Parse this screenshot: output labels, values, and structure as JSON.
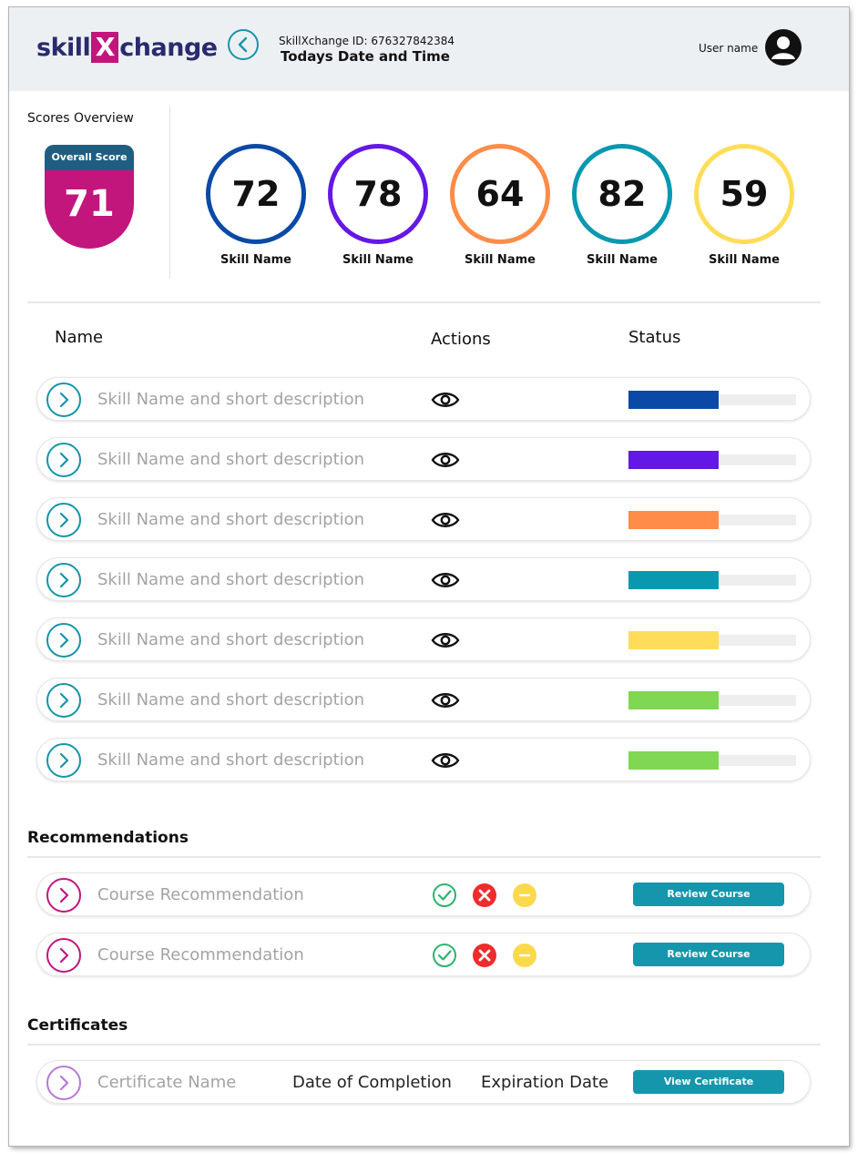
{
  "header": {
    "logo_left": "skill",
    "logo_mark": "X",
    "logo_right": "change",
    "id_line": "SkillXchange ID: 676327842384",
    "datetime_label": "Todays Date and Time",
    "user_name": "User name"
  },
  "scores": {
    "title": "Scores Overview",
    "overall_label": "Overall Score",
    "overall_value": "71",
    "overall_colors": {
      "top": "#1f5e80",
      "bottom": "#c2167c"
    },
    "items": [
      {
        "value": "72",
        "label": "Skill Name",
        "color": "#0b49a6"
      },
      {
        "value": "78",
        "label": "Skill Name",
        "color": "#6418e6"
      },
      {
        "value": "64",
        "label": "Skill Name",
        "color": "#ff8c48"
      },
      {
        "value": "82",
        "label": "Skill Name",
        "color": "#0898b0"
      },
      {
        "value": "59",
        "label": "Skill Name",
        "color": "#ffdd5a"
      }
    ]
  },
  "skills_table": {
    "headers": {
      "name": "Name",
      "actions": "Actions",
      "status": "Status"
    },
    "action_icon": "eye-icon",
    "rows": [
      {
        "text": "Skill Name and short description",
        "status_fraction": 0.54,
        "color": "#0b49a6"
      },
      {
        "text": "Skill Name and short description",
        "status_fraction": 0.54,
        "color": "#6418e6"
      },
      {
        "text": "Skill Name and short description",
        "status_fraction": 0.54,
        "color": "#ff8c48"
      },
      {
        "text": "Skill Name and short description",
        "status_fraction": 0.54,
        "color": "#0898b0"
      },
      {
        "text": "Skill Name and short description",
        "status_fraction": 0.54,
        "color": "#ffdd5a"
      },
      {
        "text": "Skill Name and short description",
        "status_fraction": 0.54,
        "color": "#7fd753"
      },
      {
        "text": "Skill Name and short description",
        "status_fraction": 0.54,
        "color": "#7fd753"
      }
    ]
  },
  "recommendations": {
    "title": "Recommendations",
    "rows": [
      {
        "text": "Course Recommendation",
        "button": "Review Course"
      },
      {
        "text": "Course Recommendation",
        "button": "Review Course"
      }
    ],
    "icons": {
      "accept": "check-circle-icon",
      "reject": "x-circle-icon",
      "neutral": "minus-circle-icon"
    }
  },
  "certificates": {
    "title": "Certificates",
    "rows": [
      {
        "name": "Certificate Name",
        "completion": "Date of Completion",
        "expiration": "Expiration Date",
        "button": "View Certificate"
      }
    ]
  },
  "colors": {
    "accent": "#1596ad",
    "brand_navy": "#2a2a6e",
    "brand_magenta": "#c2167c",
    "recommendation_chevron": "#c2167c",
    "certificate_chevron": "#b57ad6",
    "skill_chevron": "#1794a8"
  }
}
